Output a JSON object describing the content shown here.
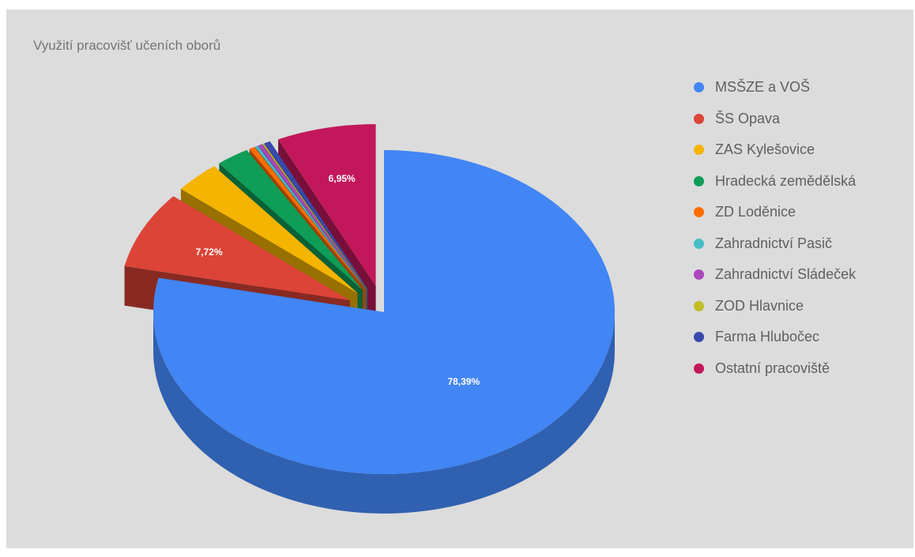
{
  "chart_data": {
    "type": "pie",
    "title": "Využití pracovišť učeních oborů",
    "legend_position": "right",
    "pie_style": "3d, exploded",
    "slices": [
      {
        "name": "MSŠZE a VOŠ",
        "value": 78.39,
        "label": "78,39%",
        "color": "#4285f4"
      },
      {
        "name": "ŠS Opava",
        "value": 7.72,
        "label": "7,72%",
        "color": "#db4437"
      },
      {
        "name": "ZAS Kylešovice",
        "value": 3.2,
        "label": "",
        "color": "#f4b400"
      },
      {
        "name": "Hradecká zemědělská",
        "value": 2.3,
        "label": "",
        "color": "#0f9d58"
      },
      {
        "name": "ZD Loděnice",
        "value": 0.4,
        "label": "",
        "color": "#ff6d01"
      },
      {
        "name": "Zahradnictví Pasič",
        "value": 0.2,
        "label": "",
        "color": "#46bdc6"
      },
      {
        "name": "Zahradnictví Sládeček",
        "value": 0.3,
        "label": "",
        "color": "#ab47bc"
      },
      {
        "name": "ZOD Hlavnice",
        "value": 0.1,
        "label": "",
        "color": "#c1bd26"
      },
      {
        "name": "Farma Hlubočec",
        "value": 0.43,
        "label": "",
        "color": "#3949ab"
      },
      {
        "name": "Ostatní pracoviště",
        "value": 6.95,
        "label": "6,95%",
        "color": "#c2185b"
      }
    ]
  }
}
